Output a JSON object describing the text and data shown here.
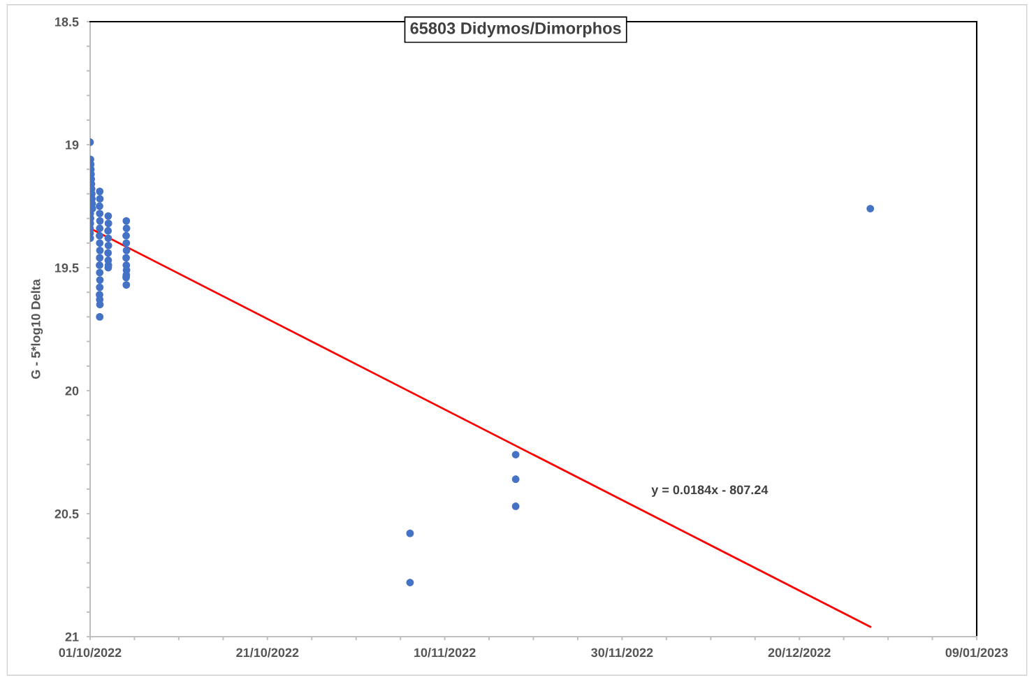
{
  "chart_data": {
    "type": "scatter",
    "title": "65803 Didymos/Dimorphos",
    "ylabel": "G - 5*log10 Delta",
    "xlim": [
      "2022-10-01",
      "2023-01-09"
    ],
    "xticks": [
      {
        "value": "2022-10-01",
        "label": "01/10/2022"
      },
      {
        "value": "2022-10-06",
        "label": null
      },
      {
        "value": "2022-10-11",
        "label": null
      },
      {
        "value": "2022-10-16",
        "label": null
      },
      {
        "value": "2022-10-21",
        "label": "21/10/2022"
      },
      {
        "value": "2022-10-26",
        "label": null
      },
      {
        "value": "2022-10-31",
        "label": null
      },
      {
        "value": "2022-11-05",
        "label": null
      },
      {
        "value": "2022-11-10",
        "label": "10/11/2022"
      },
      {
        "value": "2022-11-15",
        "label": null
      },
      {
        "value": "2022-11-20",
        "label": null
      },
      {
        "value": "2022-11-25",
        "label": null
      },
      {
        "value": "2022-11-30",
        "label": "30/11/2022"
      },
      {
        "value": "2022-12-05",
        "label": null
      },
      {
        "value": "2022-12-10",
        "label": null
      },
      {
        "value": "2022-12-15",
        "label": null
      },
      {
        "value": "2022-12-20",
        "label": "20/12/2022"
      },
      {
        "value": "2022-12-25",
        "label": null
      },
      {
        "value": "2022-12-30",
        "label": null
      },
      {
        "value": "2023-01-04",
        "label": null
      },
      {
        "value": "2023-01-09",
        "label": "09/01/2023"
      }
    ],
    "ylim": [
      21,
      18.5
    ],
    "yticks": [
      18.5,
      {
        "value": 18.6,
        "label": null
      },
      {
        "value": 18.7,
        "label": null
      },
      {
        "value": 18.8,
        "label": null
      },
      {
        "value": 18.9,
        "label": null
      },
      19,
      {
        "value": 19.1,
        "label": null
      },
      {
        "value": 19.2,
        "label": null
      },
      {
        "value": 19.3,
        "label": null
      },
      {
        "value": 19.4,
        "label": null
      },
      19.5,
      {
        "value": 19.6,
        "label": null
      },
      {
        "value": 19.7,
        "label": null
      },
      {
        "value": 19.8,
        "label": null
      },
      {
        "value": 19.9,
        "label": null
      },
      20,
      {
        "value": 20.1,
        "label": null
      },
      {
        "value": 20.2,
        "label": null
      },
      {
        "value": 20.3,
        "label": null
      },
      {
        "value": 20.4,
        "label": null
      },
      20.5,
      {
        "value": 20.6,
        "label": null
      },
      {
        "value": 20.7,
        "label": null
      },
      {
        "value": 20.8,
        "label": null
      },
      {
        "value": 20.9,
        "label": null
      },
      21
    ],
    "grid": false,
    "legend": false,
    "marker": "circle",
    "series": [
      {
        "color": "#4472c4",
        "x": [
          "2022-10-01T00:00",
          "2022-10-01T01:00",
          "2022-10-01T01:30",
          "2022-10-01T02:00",
          "2022-10-01T02:30",
          "2022-10-01T03:00",
          "2022-10-01T03:30",
          "2022-10-01T04:00",
          "2022-10-01T04:30",
          "2022-10-01T05:00",
          "2022-10-01T05:30",
          "2022-10-01T06:00",
          "2022-10-01T00:30",
          "2022-10-01T01:00",
          "2022-10-01T00:30",
          "2022-10-01T00:00",
          "2022-10-01T00:00",
          "2022-10-01T00:30",
          "2022-10-02T02:00",
          "2022-10-02T02:30",
          "2022-10-02T01:30",
          "2022-10-02T02:00",
          "2022-10-02T02:30",
          "2022-10-02T02:00",
          "2022-10-02T01:30",
          "2022-10-02T02:00",
          "2022-10-02T02:30",
          "2022-10-02T02:00",
          "2022-10-02T01:30",
          "2022-10-02T02:00",
          "2022-10-02T02:30",
          "2022-10-02T02:00",
          "2022-10-02T01:30",
          "2022-10-02T02:00",
          "2022-10-02T02:30",
          "2022-10-02T02:00",
          "2022-10-03T01:00",
          "2022-10-03T01:30",
          "2022-10-03T00:30",
          "2022-10-03T01:00",
          "2022-10-03T01:30",
          "2022-10-03T00:30",
          "2022-10-03T01:00",
          "2022-10-03T01:30",
          "2022-10-03T01:00",
          "2022-10-05T02:00",
          "2022-10-05T02:30",
          "2022-10-05T01:30",
          "2022-10-05T02:00",
          "2022-10-05T02:30",
          "2022-10-05T01:30",
          "2022-10-05T02:00",
          "2022-10-05T02:30",
          "2022-10-05T02:00",
          "2022-10-05T01:30",
          "2022-10-05T02:00",
          "2022-11-06T02:00",
          "2022-11-06T02:00",
          "2022-11-18T00:00",
          "2022-11-18T00:00",
          "2022-11-18T00:00",
          "2022-12-28T00:00"
        ],
        "values": [
          18.99,
          19.06,
          19.08,
          19.1,
          19.12,
          19.14,
          19.16,
          19.18,
          19.2,
          19.22,
          19.24,
          19.26,
          19.28,
          19.3,
          19.32,
          19.34,
          19.36,
          19.38,
          19.19,
          19.22,
          19.25,
          19.28,
          19.31,
          19.34,
          19.37,
          19.4,
          19.43,
          19.46,
          19.49,
          19.52,
          19.55,
          19.58,
          19.61,
          19.63,
          19.65,
          19.7,
          19.29,
          19.32,
          19.35,
          19.38,
          19.41,
          19.44,
          19.47,
          19.49,
          19.5,
          19.31,
          19.34,
          19.37,
          19.4,
          19.43,
          19.46,
          19.49,
          19.51,
          19.53,
          19.54,
          19.57,
          20.58,
          20.78,
          20.26,
          20.36,
          20.47,
          19.26
        ]
      },
      {
        "type": "line",
        "color": "#ff0000",
        "marker": "none",
        "x": [
          "2022-10-01",
          "2022-12-28"
        ],
        "values": [
          19.34,
          20.96
        ]
      }
    ],
    "annotations": [
      "y = 0.0184x - 807.24"
    ]
  }
}
